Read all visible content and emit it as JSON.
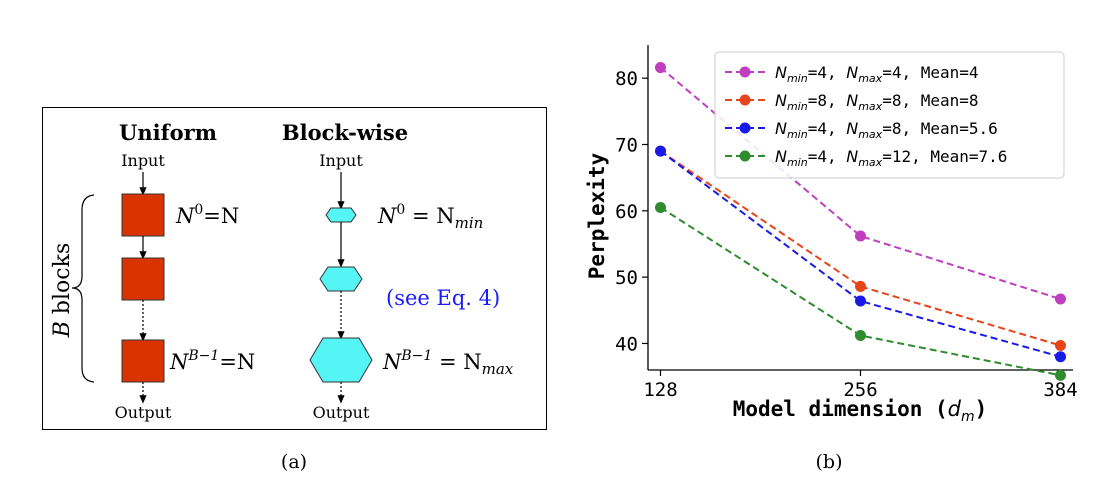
{
  "panel_a": {
    "uniform_title": "Uniform",
    "blockwise_title": "Block-wise",
    "input_label": "Input",
    "output_label": "Output",
    "brace_label_symbol": "B",
    "brace_label_text": " blocks",
    "uniform_n0": "N",
    "uniform_n0_sup": "0",
    "uniform_n0_rhs": "=N",
    "uniform_nlast": "N",
    "uniform_nlast_sup": "B−1",
    "uniform_nlast_rhs": "=N",
    "blockwise_n0": "N",
    "blockwise_n0_sup": "0",
    "blockwise_n0_rhs": " = N",
    "blockwise_n0_sub": "min",
    "blockwise_nlast": "N",
    "blockwise_nlast_sup": "B−1",
    "blockwise_nlast_rhs": " = N",
    "blockwise_nlast_sub": "max",
    "see_eq": "(see Eq. 4)",
    "caption": "(a)",
    "colors": {
      "uniform_block": "#d93300",
      "blockwise_block": "#55f5f5",
      "see_eq": "#1a1aff"
    }
  },
  "chart_data": {
    "type": "line",
    "xlabel_main": "Model dimension (",
    "xlabel_var": "d",
    "xlabel_sub": "m",
    "xlabel_close": ")",
    "ylabel": "Perplexity",
    "x": [
      128,
      256,
      384
    ],
    "xticks": [
      "128",
      "256",
      "384"
    ],
    "yticks": [
      "40",
      "50",
      "60",
      "70",
      "80"
    ],
    "ylim": [
      36,
      85
    ],
    "xlim": [
      120,
      392
    ],
    "grid": false,
    "legend_position": "top-right",
    "caption": "(b)",
    "series": [
      {
        "name_pre": "=4, ",
        "nmin": "4",
        "nmax": "4",
        "mean": "Mean=4",
        "color": "#bf3fbf",
        "values": [
          81.6,
          56.2,
          46.7
        ],
        "legend": [
          "N",
          "min",
          "=4, ",
          "N",
          "max",
          "=4,  ",
          "Mean=4"
        ]
      },
      {
        "nmin": "8",
        "nmax": "8",
        "mean": "Mean=8",
        "color": "#e8441a",
        "values": [
          69.0,
          48.6,
          39.7
        ],
        "legend": [
          "N",
          "min",
          "=8, ",
          "N",
          "max",
          "=8,  ",
          "Mean=8"
        ]
      },
      {
        "nmin": "4",
        "nmax": "8",
        "mean": "Mean=5.6",
        "color": "#1a1ae8",
        "values": [
          69.0,
          46.4,
          38.0
        ],
        "legend": [
          "N",
          "min",
          "=4, ",
          "N",
          "max",
          "=8,  ",
          "Mean=5.6"
        ]
      },
      {
        "nmin": "4",
        "nmax": "12",
        "mean": "Mean=7.6",
        "color": "#2e8b2e",
        "values": [
          60.5,
          41.2,
          35.2
        ],
        "legend": [
          "N",
          "min",
          "=4, ",
          "N",
          "max",
          "=12, ",
          "Mean=7.6"
        ]
      }
    ]
  }
}
